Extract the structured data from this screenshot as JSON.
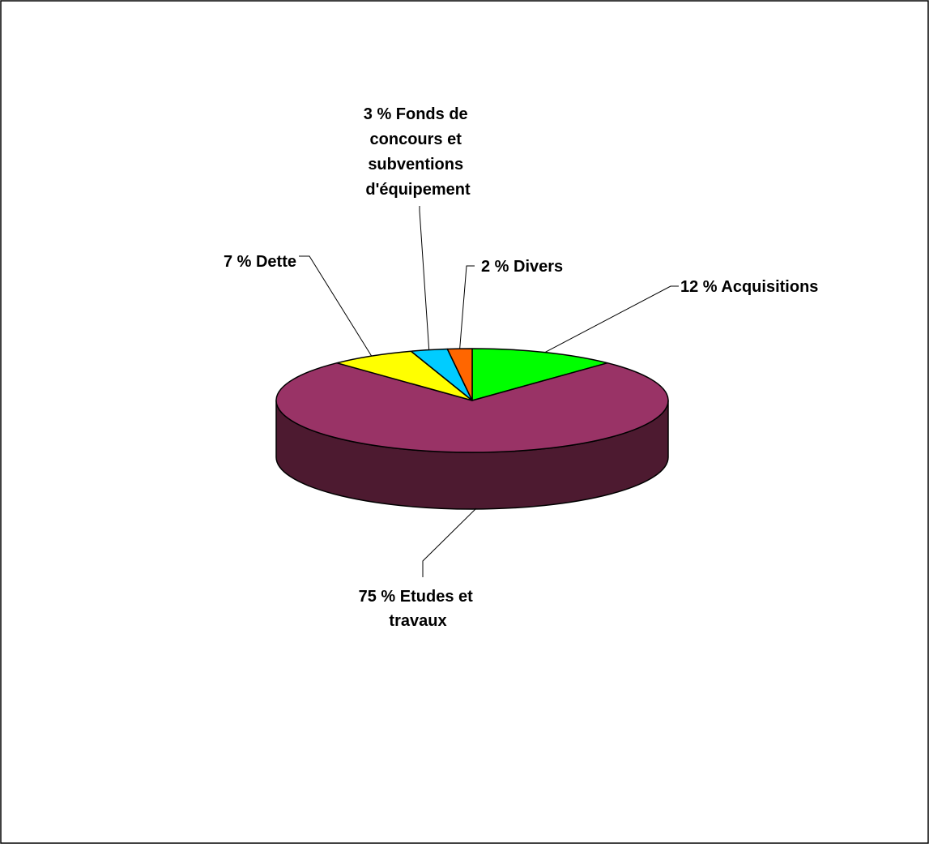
{
  "chart_data": {
    "type": "pie",
    "style": "3d",
    "title": "",
    "slices": [
      {
        "label": "Acquisitions",
        "value": 12,
        "display": "12 %  Acquisitions",
        "color": "#00ff00"
      },
      {
        "label": "Etudes et travaux",
        "value": 75,
        "display": "75 %  Etudes et travaux",
        "color": "#993366"
      },
      {
        "label": "Dette",
        "value": 7,
        "display": "7 % Dette",
        "color": "#ffff00"
      },
      {
        "label": "Fonds de concours et subventions d'équipement",
        "value": 3,
        "display": "3 %  Fonds de concours et subventions d'équipement",
        "color": "#00ccff"
      },
      {
        "label": "Divers",
        "value": 2,
        "display": "2 % Divers",
        "color": "#ff6600"
      }
    ],
    "legend": "none",
    "data_labels": "outside with leader lines"
  },
  "labels": {
    "acquisitions": [
      "12 %  Acquisitions"
    ],
    "etudes": [
      "75 %  Etudes et",
      "travaux"
    ],
    "dette": [
      "7 % Dette"
    ],
    "fonds": [
      "3 %  Fonds de",
      "concours et",
      "subventions",
      "d'équipement"
    ],
    "divers": [
      "2 % Divers"
    ]
  },
  "side_color": "#4d1a30",
  "border_color": "#000000"
}
